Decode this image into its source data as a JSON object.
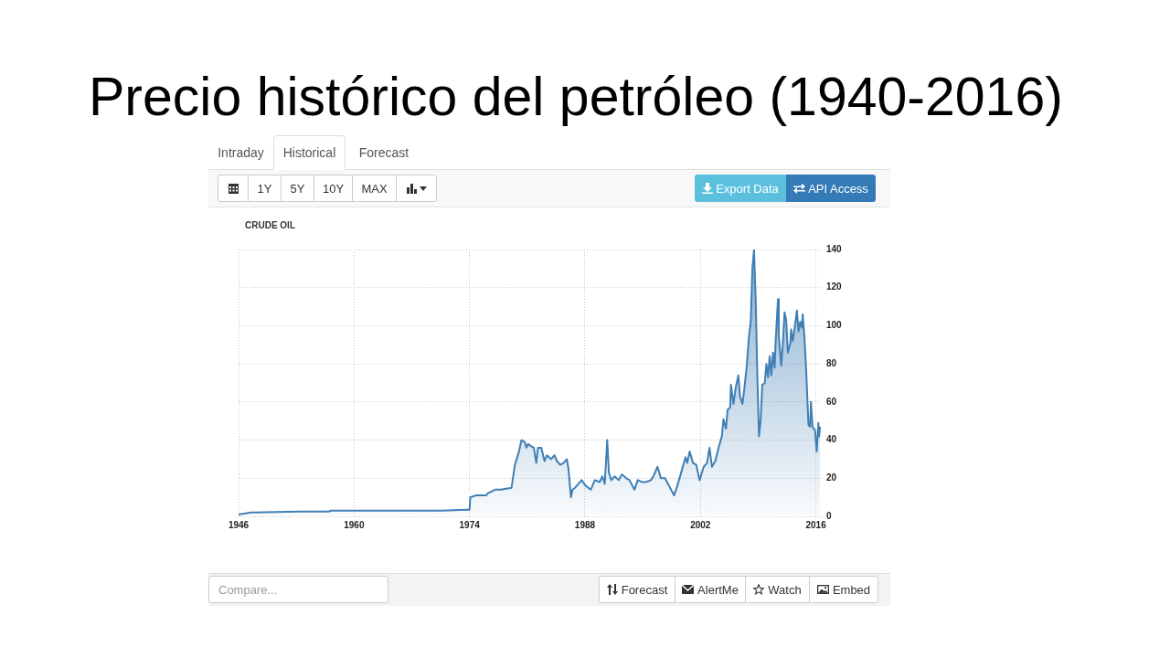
{
  "chart_data": {
    "type": "area",
    "title": "Precio histórico del petróleo (1940-2016)",
    "subtitle": "CRUDE OIL",
    "annotations": [
      "Intraday",
      "Historical",
      "Forecast",
      "1Y",
      "5Y",
      "10Y",
      "MAX",
      "Export Data",
      "API Access",
      "Compare...",
      "Forecast",
      "AlertMe",
      "Watch",
      "Embed"
    ],
    "color": "#3f7fb5",
    "x": [
      1946.0,
      1947.5,
      1948.0,
      1953.3,
      1953.4,
      1957.0,
      1957.1,
      1969.2,
      1970.7,
      1973.6,
      1974.0,
      1974.1,
      1974.8,
      1976.0,
      1976.2,
      1977.1,
      1977.8,
      1979.1,
      1979.5,
      1980.0,
      1980.3,
      1980.7,
      1980.9,
      1981.1,
      1981.4,
      1981.8,
      1982.1,
      1982.3,
      1982.7,
      1983.1,
      1983.4,
      1983.9,
      1984.3,
      1984.6,
      1985.0,
      1985.4,
      1985.8,
      1986.0,
      1986.3,
      1986.5,
      1986.8,
      1987.4,
      1987.6,
      1988.1,
      1988.7,
      1989.2,
      1989.8,
      1990.1,
      1990.4,
      1990.7,
      1990.9,
      1991.2,
      1991.6,
      1992.1,
      1992.5,
      1993.0,
      1993.4,
      1994.0,
      1994.4,
      1994.9,
      1995.4,
      1996.0,
      1996.3,
      1996.8,
      1997.2,
      1997.7,
      1998.2,
      1998.8,
      1999.2,
      1999.8,
      2000.2,
      2000.4,
      2000.7,
      2001.1,
      2001.5,
      2001.9,
      2002.4,
      2002.8,
      2003.1,
      2003.4,
      2003.8,
      2004.2,
      2004.6,
      2004.8,
      2005.1,
      2005.3,
      2005.6,
      2005.7,
      2006.0,
      2006.3,
      2006.6,
      2006.8,
      2007.1,
      2007.3,
      2007.6,
      2007.9,
      2008.1,
      2008.3,
      2008.5,
      2008.7,
      2008.9,
      2009.1,
      2009.3,
      2009.5,
      2009.8,
      2010.0,
      2010.2,
      2010.4,
      2010.6,
      2010.8,
      2011.0,
      2011.1,
      2011.4,
      2011.5,
      2011.8,
      2012.0,
      2012.2,
      2012.4,
      2012.6,
      2012.9,
      2013.0,
      2013.2,
      2013.4,
      2013.7,
      2013.9,
      2014.1,
      2014.3,
      2014.4,
      2014.6,
      2014.8,
      2015.1,
      2015.3,
      2015.4,
      2015.6,
      2015.9,
      2016.1,
      2016.3,
      2016.4,
      2016.5
    ],
    "values": [
      1,
      2,
      2,
      2.5,
      2.5,
      2.5,
      3,
      3,
      3,
      3.5,
      3.5,
      10,
      11,
      11,
      12,
      14,
      14,
      15,
      27,
      34,
      40,
      39,
      36,
      38,
      37,
      36,
      28,
      36,
      36,
      29,
      32,
      30,
      32,
      29,
      27,
      28,
      30,
      25,
      10,
      14,
      15,
      18,
      19,
      16,
      14,
      19,
      18,
      21,
      17,
      40,
      23,
      19,
      21,
      19,
      22,
      20,
      19,
      14,
      19,
      18,
      18,
      19,
      21,
      26,
      20,
      20,
      16,
      11,
      16,
      25,
      31,
      28,
      34,
      28,
      27,
      19,
      26,
      28,
      36,
      26,
      29,
      36,
      42,
      51,
      46,
      56,
      57,
      69,
      59,
      68,
      74,
      63,
      59,
      66,
      78,
      95,
      102,
      130,
      140,
      114,
      74,
      42,
      50,
      69,
      70,
      80,
      73,
      84,
      74,
      86,
      78,
      90,
      114,
      95,
      79,
      91,
      107,
      103,
      86,
      91,
      98,
      92,
      98,
      108,
      97,
      102,
      99,
      106,
      95,
      79,
      48,
      47,
      60,
      47,
      45,
      34,
      49,
      42,
      47
    ],
    "xlim": [
      1946,
      2016.6
    ],
    "xticks": [
      1946,
      1960,
      1974,
      1988,
      2002,
      2016
    ],
    "ylim": [
      0,
      140
    ],
    "yticks": [
      0,
      20,
      40,
      60,
      80,
      100,
      120,
      140
    ],
    "grid": true
  }
}
